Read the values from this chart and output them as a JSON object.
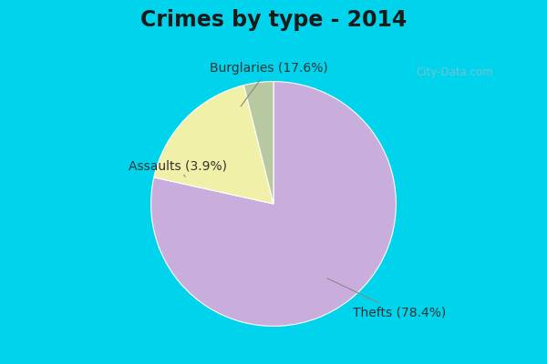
{
  "title": "Crimes by type - 2014",
  "slices": [
    {
      "label": "Thefts",
      "pct": 78.4,
      "color": "#c9aedd"
    },
    {
      "label": "Burglaries",
      "pct": 17.6,
      "color": "#f0f0a8"
    },
    {
      "label": "Assaults",
      "pct": 3.9,
      "color": "#b8c8a0"
    }
  ],
  "bg_color_top": "#00d4ec",
  "bg_color_main": "#c8e8d8",
  "title_fontsize": 17,
  "label_fontsize": 10,
  "watermark": "City-Data.com"
}
